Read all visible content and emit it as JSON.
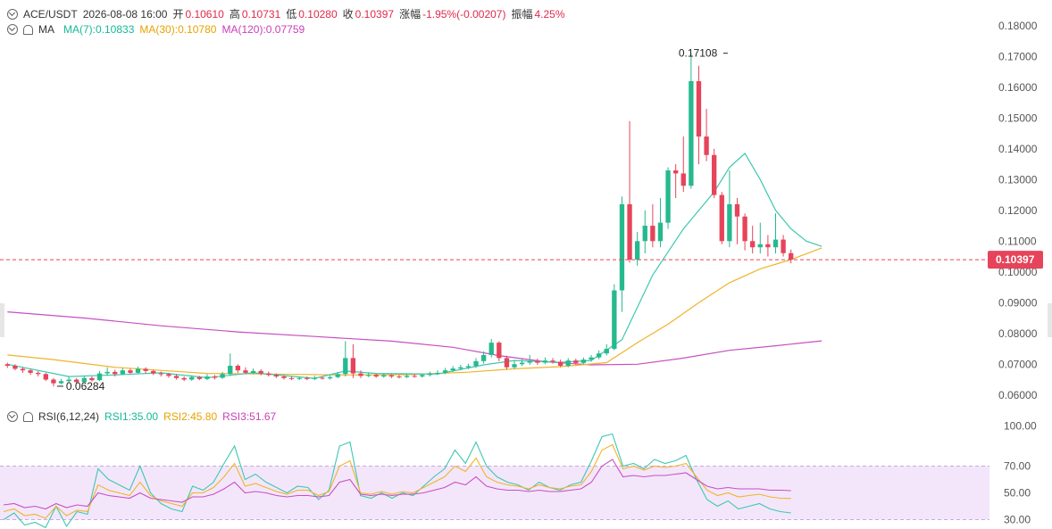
{
  "header": {
    "symbol": "ACE/USDT",
    "datetime": "2026-08-08 16:00",
    "open_label": "开",
    "open": "0.10610",
    "high_label": "高",
    "high": "0.10731",
    "low_label": "低",
    "low": "0.10280",
    "close_label": "收",
    "close": "0.10397",
    "change_label": "涨幅",
    "change": "-1.95%(-0.00207)",
    "amp_label": "振幅",
    "amp": "4.25%"
  },
  "ma_legend": {
    "label": "MA",
    "ma7": "MA(7):0.10833",
    "ma30": "MA(30):0.10780",
    "ma120": "MA(120):0.07759"
  },
  "rsi_legend": {
    "label": "RSI(6,12,24)",
    "rsi1": "RSI1:35.00",
    "rsi2": "RSI2:45.80",
    "rsi3": "RSI3:51.67"
  },
  "colors": {
    "up": "#26b98e",
    "down": "#e6445a",
    "ma7": "#3cc8b0",
    "ma30": "#f0b429",
    "ma120": "#c84fc0",
    "rsi_band": "#f3e6fb",
    "price_tag": "#e6445a"
  },
  "chart_data": [
    {
      "type": "candlestick",
      "title": "ACE/USDT",
      "y_ticks": [
        "0.18000",
        "0.17000",
        "0.16000",
        "0.15000",
        "0.14000",
        "0.13000",
        "0.12000",
        "0.11000",
        "0.10000",
        "0.09000",
        "0.08000",
        "0.07000",
        "0.06000"
      ],
      "ylim": [
        0.055,
        0.182
      ],
      "last_price": 0.10397,
      "last_price_label": "0.10397",
      "max_annotation": {
        "value": 0.17108,
        "label": "0.17108",
        "index": 94
      },
      "min_annotation": {
        "value": 0.06284,
        "label": "0.06284",
        "index": 6
      },
      "candles": [
        [
          0.07,
          0.0695,
          0.0688,
          0.0705
        ],
        [
          0.0695,
          0.0685,
          0.068,
          0.07
        ],
        [
          0.0685,
          0.068,
          0.0672,
          0.069
        ],
        [
          0.068,
          0.0672,
          0.0665,
          0.0685
        ],
        [
          0.0672,
          0.0668,
          0.066,
          0.0678
        ],
        [
          0.0668,
          0.065,
          0.0645,
          0.0672
        ],
        [
          0.065,
          0.0638,
          0.0628,
          0.0655
        ],
        [
          0.0638,
          0.0645,
          0.0635,
          0.0652
        ],
        [
          0.0645,
          0.065,
          0.064,
          0.066
        ],
        [
          0.065,
          0.0642,
          0.0638,
          0.0655
        ],
        [
          0.0642,
          0.0655,
          0.064,
          0.0662
        ],
        [
          0.0655,
          0.0648,
          0.0644,
          0.066
        ],
        [
          0.0648,
          0.067,
          0.0645,
          0.0678
        ],
        [
          0.067,
          0.0675,
          0.0662,
          0.069
        ],
        [
          0.0675,
          0.0668,
          0.066,
          0.0682
        ],
        [
          0.0668,
          0.068,
          0.0665,
          0.0688
        ],
        [
          0.068,
          0.0672,
          0.0668,
          0.0686
        ],
        [
          0.0672,
          0.0685,
          0.067,
          0.0692
        ],
        [
          0.0685,
          0.0678,
          0.067,
          0.069
        ],
        [
          0.0678,
          0.067,
          0.0665,
          0.0682
        ],
        [
          0.067,
          0.0668,
          0.066,
          0.0676
        ],
        [
          0.0668,
          0.0662,
          0.0656,
          0.0672
        ],
        [
          0.0662,
          0.0655,
          0.065,
          0.0668
        ],
        [
          0.0655,
          0.065,
          0.0645,
          0.066
        ],
        [
          0.065,
          0.0658,
          0.0646,
          0.0664
        ],
        [
          0.0658,
          0.0652,
          0.0648,
          0.0662
        ],
        [
          0.0652,
          0.066,
          0.0648,
          0.0668
        ],
        [
          0.066,
          0.0656,
          0.065,
          0.0665
        ],
        [
          0.0656,
          0.0668,
          0.0652,
          0.0675
        ],
        [
          0.0668,
          0.0695,
          0.0662,
          0.0735
        ],
        [
          0.0695,
          0.068,
          0.0672,
          0.07
        ],
        [
          0.068,
          0.0672,
          0.0668,
          0.069
        ],
        [
          0.0672,
          0.0678,
          0.0668,
          0.0686
        ],
        [
          0.0678,
          0.067,
          0.0664,
          0.0684
        ],
        [
          0.067,
          0.0665,
          0.066,
          0.0676
        ],
        [
          0.0665,
          0.066,
          0.0655,
          0.067
        ],
        [
          0.066,
          0.0655,
          0.065,
          0.0665
        ],
        [
          0.0655,
          0.0652,
          0.0648,
          0.066
        ],
        [
          0.0652,
          0.0655,
          0.0648,
          0.066
        ],
        [
          0.0655,
          0.0652,
          0.0648,
          0.066
        ],
        [
          0.0652,
          0.0656,
          0.0648,
          0.0662
        ],
        [
          0.0656,
          0.0654,
          0.065,
          0.066
        ],
        [
          0.0654,
          0.0658,
          0.065,
          0.0664
        ],
        [
          0.0658,
          0.0668,
          0.0654,
          0.0675
        ],
        [
          0.0668,
          0.072,
          0.066,
          0.0775
        ],
        [
          0.072,
          0.067,
          0.0655,
          0.0765
        ],
        [
          0.067,
          0.0662,
          0.0655,
          0.068
        ],
        [
          0.0662,
          0.0665,
          0.0658,
          0.0672
        ],
        [
          0.0665,
          0.066,
          0.0656,
          0.067
        ],
        [
          0.066,
          0.0664,
          0.0656,
          0.067
        ],
        [
          0.0664,
          0.066,
          0.0655,
          0.0668
        ],
        [
          0.066,
          0.0658,
          0.0654,
          0.0665
        ],
        [
          0.0658,
          0.0662,
          0.0655,
          0.0668
        ],
        [
          0.0662,
          0.066,
          0.0656,
          0.0668
        ],
        [
          0.066,
          0.0665,
          0.0656,
          0.067
        ],
        [
          0.0665,
          0.067,
          0.066,
          0.0676
        ],
        [
          0.067,
          0.0672,
          0.0665,
          0.068
        ],
        [
          0.0672,
          0.068,
          0.0668,
          0.0688
        ],
        [
          0.068,
          0.0686,
          0.0675,
          0.0694
        ],
        [
          0.0686,
          0.069,
          0.068,
          0.0698
        ],
        [
          0.069,
          0.0694,
          0.0684,
          0.0702
        ],
        [
          0.0694,
          0.071,
          0.0688,
          0.072
        ],
        [
          0.071,
          0.073,
          0.0702,
          0.0742
        ],
        [
          0.073,
          0.077,
          0.0722,
          0.0782
        ],
        [
          0.077,
          0.072,
          0.071,
          0.0775
        ],
        [
          0.072,
          0.069,
          0.0682,
          0.0728
        ],
        [
          0.069,
          0.07,
          0.0684,
          0.0712
        ],
        [
          0.07,
          0.0705,
          0.0694,
          0.0718
        ],
        [
          0.0705,
          0.071,
          0.0698,
          0.073
        ],
        [
          0.071,
          0.0705,
          0.0698,
          0.0718
        ],
        [
          0.0705,
          0.0712,
          0.07,
          0.0722
        ],
        [
          0.0712,
          0.0708,
          0.0702,
          0.072
        ],
        [
          0.0708,
          0.0695,
          0.069,
          0.0715
        ],
        [
          0.0695,
          0.0712,
          0.069,
          0.072
        ],
        [
          0.0712,
          0.0704,
          0.0698,
          0.0718
        ],
        [
          0.0704,
          0.0715,
          0.07,
          0.0722
        ],
        [
          0.0715,
          0.0722,
          0.0708,
          0.073
        ],
        [
          0.0722,
          0.0735,
          0.0716,
          0.0745
        ],
        [
          0.0735,
          0.075,
          0.0728,
          0.0765
        ],
        [
          0.075,
          0.094,
          0.0745,
          0.096
        ],
        [
          0.094,
          0.122,
          0.087,
          0.1245
        ],
        [
          0.122,
          0.104,
          0.103,
          0.149
        ],
        [
          0.104,
          0.11,
          0.102,
          0.113
        ],
        [
          0.11,
          0.115,
          0.106,
          0.12
        ],
        [
          0.115,
          0.11,
          0.108,
          0.122
        ],
        [
          0.11,
          0.116,
          0.108,
          0.124
        ],
        [
          0.116,
          0.133,
          0.114,
          0.134
        ],
        [
          0.133,
          0.132,
          0.124,
          0.135
        ],
        [
          0.132,
          0.128,
          0.126,
          0.144
        ],
        [
          0.128,
          0.162,
          0.127,
          0.1711
        ],
        [
          0.162,
          0.144,
          0.135,
          0.167
        ],
        [
          0.144,
          0.138,
          0.136,
          0.153
        ],
        [
          0.138,
          0.125,
          0.124,
          0.14
        ],
        [
          0.125,
          0.11,
          0.109,
          0.126
        ],
        [
          0.11,
          0.122,
          0.108,
          0.133
        ],
        [
          0.122,
          0.118,
          0.109,
          0.124
        ],
        [
          0.118,
          0.11,
          0.107,
          0.119
        ],
        [
          0.11,
          0.108,
          0.106,
          0.115
        ],
        [
          0.108,
          0.109,
          0.106,
          0.116
        ],
        [
          0.109,
          0.108,
          0.105,
          0.112
        ],
        [
          0.108,
          0.1105,
          0.106,
          0.119
        ],
        [
          0.1105,
          0.1061,
          0.105,
          0.112
        ],
        [
          0.1061,
          0.104,
          0.1028,
          0.1073
        ]
      ],
      "ma7_path": [
        [
          0,
          0.07
        ],
        [
          8,
          0.066
        ],
        [
          14,
          0.0665
        ],
        [
          20,
          0.0672
        ],
        [
          26,
          0.0656
        ],
        [
          32,
          0.0672
        ],
        [
          40,
          0.0654
        ],
        [
          44,
          0.0678
        ],
        [
          48,
          0.067
        ],
        [
          56,
          0.0668
        ],
        [
          62,
          0.0698
        ],
        [
          66,
          0.0712
        ],
        [
          72,
          0.0706
        ],
        [
          76,
          0.0712
        ],
        [
          80,
          0.078
        ],
        [
          84,
          0.099
        ],
        [
          88,
          0.114
        ],
        [
          92,
          0.126
        ],
        [
          94,
          0.134
        ],
        [
          96,
          0.1385
        ],
        [
          98,
          0.13
        ],
        [
          100,
          0.12
        ],
        [
          102,
          0.114
        ],
        [
          104,
          0.11
        ],
        [
          106,
          0.1083
        ]
      ],
      "ma30_path": [
        [
          0,
          0.073
        ],
        [
          6,
          0.0715
        ],
        [
          14,
          0.069
        ],
        [
          20,
          0.068
        ],
        [
          26,
          0.067
        ],
        [
          34,
          0.0668
        ],
        [
          44,
          0.0665
        ],
        [
          52,
          0.0666
        ],
        [
          60,
          0.0674
        ],
        [
          66,
          0.0685
        ],
        [
          72,
          0.0692
        ],
        [
          78,
          0.0705
        ],
        [
          82,
          0.077
        ],
        [
          86,
          0.083
        ],
        [
          90,
          0.09
        ],
        [
          94,
          0.0965
        ],
        [
          98,
          0.101
        ],
        [
          102,
          0.104
        ],
        [
          106,
          0.1078
        ]
      ],
      "ma120_path": [
        [
          0,
          0.087
        ],
        [
          10,
          0.085
        ],
        [
          20,
          0.0825
        ],
        [
          30,
          0.0805
        ],
        [
          40,
          0.079
        ],
        [
          50,
          0.0775
        ],
        [
          58,
          0.0755
        ],
        [
          64,
          0.0728
        ],
        [
          70,
          0.0708
        ],
        [
          76,
          0.0698
        ],
        [
          82,
          0.07
        ],
        [
          88,
          0.072
        ],
        [
          94,
          0.0745
        ],
        [
          100,
          0.076
        ],
        [
          106,
          0.0776
        ]
      ]
    },
    {
      "type": "line",
      "title": "RSI(6,12,24)",
      "y_ticks": [
        "100.00",
        "70.00",
        "50.00",
        "30.00"
      ],
      "ylim": [
        25,
        105
      ],
      "band": [
        30,
        70
      ],
      "series": [
        {
          "name": "RSI1",
          "values": [
            30,
            35,
            26,
            28,
            24,
            40,
            25,
            36,
            34,
            68,
            60,
            56,
            52,
            70,
            50,
            42,
            38,
            36,
            55,
            52,
            58,
            72,
            85,
            60,
            64,
            58,
            54,
            50,
            55,
            54,
            45,
            52,
            85,
            88,
            48,
            46,
            50,
            46,
            50,
            48,
            55,
            62,
            68,
            82,
            72,
            88,
            70,
            62,
            58,
            56,
            52,
            58,
            54,
            52,
            56,
            58,
            74,
            92,
            94,
            70,
            72,
            68,
            75,
            72,
            74,
            78,
            60,
            45,
            40,
            44,
            38,
            40,
            42,
            38,
            36,
            35
          ]
        },
        {
          "name": "RSI2",
          "values": [
            36,
            38,
            33,
            34,
            31,
            40,
            33,
            37,
            36,
            56,
            52,
            50,
            48,
            58,
            48,
            44,
            42,
            40,
            50,
            50,
            54,
            62,
            72,
            55,
            57,
            54,
            51,
            49,
            52,
            52,
            48,
            51,
            70,
            74,
            50,
            49,
            51,
            49,
            51,
            50,
            54,
            58,
            62,
            70,
            66,
            76,
            62,
            58,
            56,
            55,
            53,
            56,
            54,
            53,
            55,
            56,
            66,
            82,
            86,
            68,
            70,
            67,
            70,
            69,
            70,
            72,
            62,
            52,
            48,
            50,
            47,
            48,
            49,
            47,
            46,
            45.8
          ]
        },
        {
          "name": "RSI3",
          "values": [
            41,
            42,
            39,
            40,
            38,
            42,
            39,
            41,
            40,
            50,
            48,
            47,
            46,
            50,
            46,
            45,
            44,
            43,
            47,
            47,
            49,
            53,
            58,
            50,
            51,
            50,
            48,
            47,
            48,
            48,
            47,
            48,
            58,
            60,
            49,
            48,
            49,
            48,
            49,
            49,
            50,
            52,
            54,
            58,
            56,
            62,
            55,
            53,
            52,
            52,
            51,
            52,
            51,
            51,
            52,
            53,
            58,
            70,
            75,
            62,
            63,
            62,
            63,
            63,
            64,
            65,
            60,
            55,
            53,
            54,
            53,
            53,
            53,
            52,
            52,
            51.67
          ]
        }
      ]
    }
  ]
}
